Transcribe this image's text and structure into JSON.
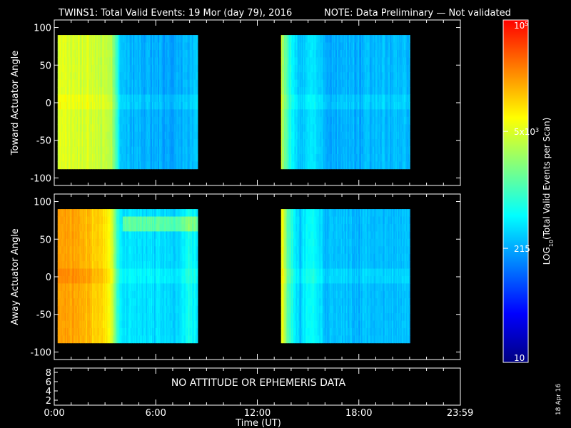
{
  "header": {
    "title": "TWINS1: Total Valid Events: 19 Mor (day  79), 2016",
    "note": "NOTE: Data Preliminary — Not validated",
    "note_color": "#ff2020"
  },
  "stamp": "18 Apr 16",
  "lower_panel": {
    "message": "NO ATTITUDE OR EPHEMERIS DATA",
    "yticks": [
      "8",
      "6",
      "4",
      "2"
    ]
  },
  "colorbar": {
    "label": "LOG10(Total Valid Events per Scan)",
    "label_main": "LOG",
    "label_sub": "10",
    "label_rest": "(Total Valid Events per Scan)",
    "ticks": [
      {
        "value": 100000,
        "base": "10",
        "exp": "5"
      },
      {
        "value": 5000,
        "base": "5x10",
        "exp": "3"
      },
      {
        "value": 215,
        "base": "215",
        "exp": ""
      },
      {
        "value": 10,
        "base": "10",
        "exp": ""
      }
    ],
    "min": 10,
    "max": 100000,
    "scale": "log",
    "colormap": [
      "#000080",
      "#0000ff",
      "#0080ff",
      "#00ffff",
      "#80ff80",
      "#ffff00",
      "#ff8000",
      "#ff0000"
    ]
  },
  "chart_data": [
    {
      "type": "heatmap",
      "panel": "toward",
      "ylabel": "Toward Actuator Angle",
      "ylim": [
        -110,
        110
      ],
      "yticks": [
        100,
        50,
        0,
        -50,
        -100
      ],
      "xlim": [
        0,
        24
      ],
      "data_segments": [
        [
          0.2,
          8.5
        ],
        [
          13.4,
          21.0
        ]
      ],
      "value_range": [
        10,
        100000
      ],
      "profile": [
        {
          "t": 0.2,
          "v": 5200
        },
        {
          "t": 1.0,
          "v": 5000
        },
        {
          "t": 2.0,
          "v": 4800
        },
        {
          "t": 3.0,
          "v": 4200
        },
        {
          "t": 3.4,
          "v": 3200
        },
        {
          "t": 3.7,
          "v": 800
        },
        {
          "t": 4.0,
          "v": 260
        },
        {
          "t": 5.0,
          "v": 230
        },
        {
          "t": 6.0,
          "v": 220
        },
        {
          "t": 7.0,
          "v": 210
        },
        {
          "t": 8.0,
          "v": 250
        },
        {
          "t": 8.5,
          "v": 300
        },
        {
          "t": 13.4,
          "v": 4500
        },
        {
          "t": 13.8,
          "v": 900
        },
        {
          "t": 14.5,
          "v": 280
        },
        {
          "t": 15.3,
          "v": 450
        },
        {
          "t": 16.0,
          "v": 240
        },
        {
          "t": 18.0,
          "v": 230
        },
        {
          "t": 19.0,
          "v": 260
        },
        {
          "t": 21.0,
          "v": 250
        }
      ]
    },
    {
      "type": "heatmap",
      "panel": "away",
      "ylabel": "Away Actuator Angle",
      "ylim": [
        -110,
        110
      ],
      "yticks": [
        100,
        50,
        0,
        -50,
        -100
      ],
      "xlim": [
        0,
        24
      ],
      "data_segments": [
        [
          0.2,
          8.5
        ],
        [
          13.4,
          21.0
        ]
      ],
      "value_range": [
        10,
        100000
      ],
      "profile": [
        {
          "t": 0.2,
          "v": 20000
        },
        {
          "t": 1.0,
          "v": 18000
        },
        {
          "t": 2.0,
          "v": 14000
        },
        {
          "t": 3.0,
          "v": 9000
        },
        {
          "t": 3.4,
          "v": 6000
        },
        {
          "t": 3.7,
          "v": 800
        },
        {
          "t": 4.0,
          "v": 420
        },
        {
          "t": 5.0,
          "v": 380
        },
        {
          "t": 6.0,
          "v": 360
        },
        {
          "t": 7.0,
          "v": 330
        },
        {
          "t": 8.0,
          "v": 600
        },
        {
          "t": 8.5,
          "v": 400
        },
        {
          "t": 13.4,
          "v": 9000
        },
        {
          "t": 13.8,
          "v": 1200
        },
        {
          "t": 14.5,
          "v": 300
        },
        {
          "t": 15.3,
          "v": 700
        },
        {
          "t": 16.0,
          "v": 260
        },
        {
          "t": 18.0,
          "v": 250
        },
        {
          "t": 19.0,
          "v": 280
        },
        {
          "t": 21.0,
          "v": 260
        }
      ]
    }
  ],
  "xaxis": {
    "label": "Time (UT)",
    "ticks": [
      {
        "t": 0,
        "label": "0:00"
      },
      {
        "t": 6,
        "label": "6:00"
      },
      {
        "t": 12,
        "label": "12:00"
      },
      {
        "t": 18,
        "label": "18:00"
      },
      {
        "t": 23.983,
        "label": "23:59"
      }
    ]
  }
}
